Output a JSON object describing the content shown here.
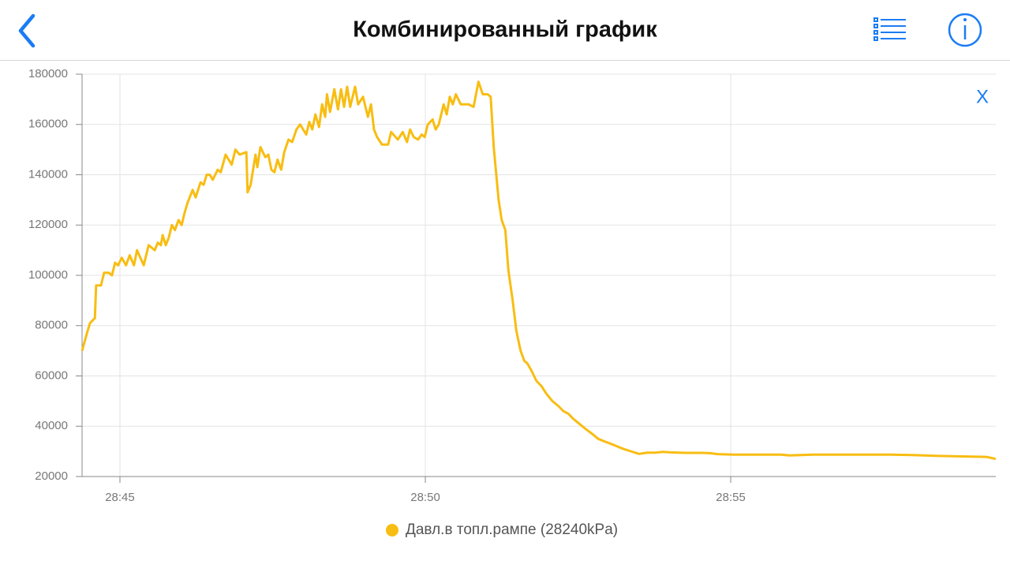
{
  "header": {
    "title": "Комбинированный график"
  },
  "close_button": "X",
  "chart_data": {
    "type": "line",
    "x": [
      1724.38,
      1724.46,
      1724.51,
      1724.59,
      1724.61,
      1724.69,
      1724.74,
      1724.82,
      1724.87,
      1724.92,
      1724.97,
      1725.03,
      1725.1,
      1725.16,
      1725.23,
      1725.28,
      1725.39,
      1725.47,
      1725.57,
      1725.62,
      1725.67,
      1725.7,
      1725.75,
      1725.8,
      1725.85,
      1725.9,
      1725.96,
      1726.01,
      1726.06,
      1726.11,
      1726.19,
      1726.24,
      1726.32,
      1726.37,
      1726.42,
      1726.47,
      1726.52,
      1726.6,
      1726.65,
      1726.73,
      1726.83,
      1726.89,
      1726.96,
      1727.07,
      1727.09,
      1727.14,
      1727.22,
      1727.25,
      1727.3,
      1727.38,
      1727.43,
      1727.48,
      1727.53,
      1727.58,
      1727.64,
      1727.69,
      1727.76,
      1727.82,
      1727.89,
      1727.95,
      1728.05,
      1728.1,
      1728.15,
      1728.2,
      1728.26,
      1728.31,
      1728.36,
      1728.39,
      1728.44,
      1728.51,
      1728.57,
      1728.62,
      1728.67,
      1728.72,
      1728.77,
      1728.85,
      1728.9,
      1728.98,
      1729.06,
      1729.11,
      1729.16,
      1729.21,
      1729.29,
      1729.39,
      1729.44,
      1729.55,
      1729.63,
      1729.7,
      1729.75,
      1729.81,
      1729.88,
      1729.94,
      1729.99,
      1730.04,
      1730.12,
      1730.17,
      1730.22,
      1730.3,
      1730.35,
      1730.4,
      1730.45,
      1730.5,
      1730.58,
      1730.71,
      1730.79,
      1730.87,
      1730.94,
      1731.02,
      1731.07,
      1731.12,
      1731.2,
      1731.25,
      1731.31,
      1731.36,
      1731.43,
      1731.49,
      1731.56,
      1731.62,
      1731.67,
      1731.74,
      1731.82,
      1731.9,
      1731.98,
      1732.08,
      1732.18,
      1732.26,
      1732.34,
      1732.42,
      1732.52,
      1732.62,
      1732.73,
      1732.83,
      1732.93,
      1733.04,
      1733.14,
      1733.24,
      1733.37,
      1733.5,
      1733.63,
      1733.76,
      1733.89,
      1734.02,
      1734.15,
      1734.28,
      1734.41,
      1734.53,
      1734.66,
      1734.79,
      1735.05,
      1735.44,
      1735.83,
      1735.96,
      1736.34,
      1736.73,
      1737.25,
      1737.64,
      1738.02,
      1738.41,
      1738.8,
      1739.19,
      1739.34
    ],
    "series": [
      {
        "name": "Давл.в топл.рампе (28240kPa)",
        "color": "#f8bd12",
        "values": [
          70000,
          77000,
          81000,
          83000,
          96000,
          96000,
          101000,
          101000,
          100000,
          105000,
          104000,
          107000,
          104000,
          108000,
          104000,
          110000,
          104000,
          112000,
          110000,
          113000,
          112000,
          116000,
          112000,
          115000,
          120000,
          118000,
          122000,
          120000,
          125000,
          129000,
          134000,
          131000,
          137000,
          136000,
          140000,
          140000,
          138000,
          142000,
          141000,
          148000,
          144000,
          150000,
          148000,
          149000,
          133000,
          136000,
          148000,
          143000,
          151000,
          147000,
          148000,
          142000,
          141000,
          146000,
          142000,
          149000,
          154000,
          153000,
          158000,
          160000,
          156000,
          161000,
          158000,
          164000,
          159000,
          168000,
          163000,
          172000,
          165000,
          174000,
          166000,
          174000,
          167000,
          175000,
          167000,
          175000,
          168000,
          171000,
          163000,
          168000,
          158000,
          155000,
          152000,
          152000,
          157000,
          154000,
          157000,
          153000,
          158000,
          155000,
          154000,
          156000,
          155000,
          160000,
          162000,
          158000,
          160000,
          168000,
          164000,
          171000,
          168000,
          172000,
          168000,
          168000,
          167000,
          177000,
          172000,
          172000,
          171000,
          151000,
          130000,
          122000,
          118000,
          102000,
          90000,
          78000,
          70000,
          66000,
          65000,
          62000,
          58000,
          56000,
          53000,
          50000,
          48000,
          46000,
          45000,
          43000,
          41000,
          39000,
          37000,
          35000,
          34000,
          33000,
          32000,
          31000,
          30000,
          29000,
          29500,
          29500,
          29800,
          29600,
          29500,
          29400,
          29400,
          29400,
          29300,
          28900,
          28700,
          28700,
          28700,
          28400,
          28700,
          28700,
          28700,
          28700,
          28500,
          28200,
          28000,
          27800,
          27000
        ]
      }
    ],
    "xlim": [
      1724.38,
      1739.34
    ],
    "xticks": [
      {
        "value": 1725,
        "label": "28:45"
      },
      {
        "value": 1730,
        "label": "28:50"
      },
      {
        "value": 1735,
        "label": "28:55"
      }
    ],
    "ylim": [
      20000,
      180000
    ],
    "yticks": [
      20000,
      40000,
      60000,
      80000,
      100000,
      120000,
      140000,
      160000,
      180000
    ],
    "grid": true
  }
}
